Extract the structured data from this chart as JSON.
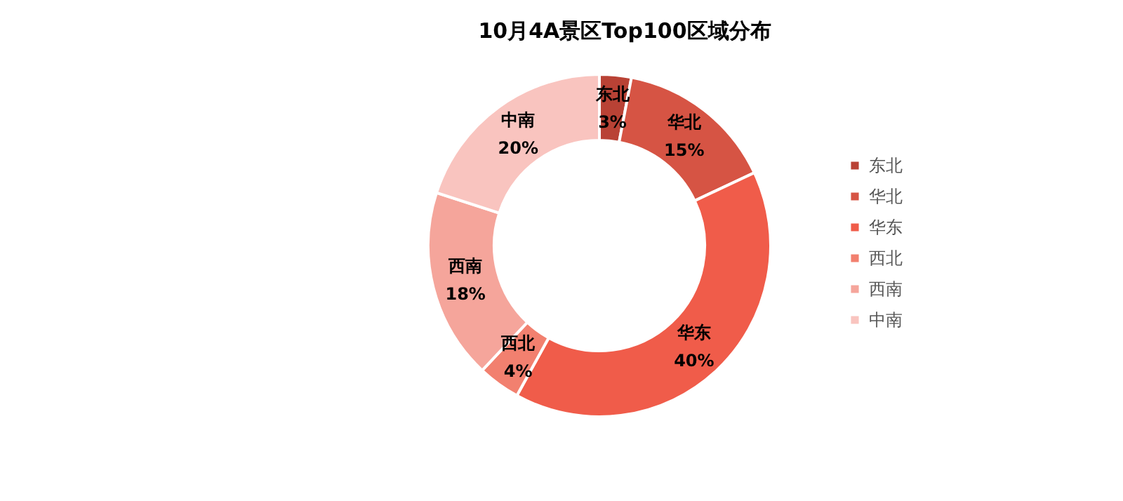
{
  "chart_data": {
    "type": "donut",
    "title": "10月4A景区Top100区域分布",
    "categories": [
      "东北",
      "华北",
      "华东",
      "西北",
      "西南",
      "中南"
    ],
    "values": [
      3,
      15,
      40,
      4,
      18,
      20
    ],
    "value_labels": [
      "3%",
      "15%",
      "40%",
      "4%",
      "18%",
      "20%"
    ],
    "colors": [
      "#b94235",
      "#d65444",
      "#f05c4a",
      "#f2806f",
      "#f5a59b",
      "#f9c4bf"
    ],
    "legend": "right"
  }
}
